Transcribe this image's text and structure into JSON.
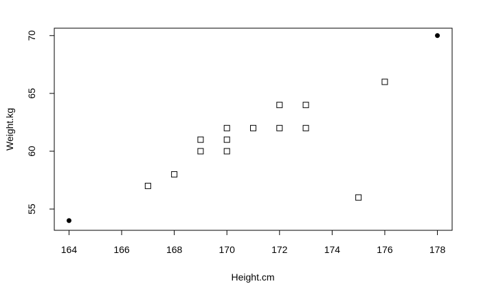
{
  "chart_data": {
    "type": "scatter",
    "xlabel": "Height.cm",
    "ylabel": "Weight.kg",
    "xlim": [
      163.44,
      178.56
    ],
    "ylim": [
      53.16,
      70.64
    ],
    "xticks": [
      164,
      166,
      168,
      170,
      172,
      174,
      176,
      178
    ],
    "yticks": [
      55,
      60,
      65,
      70
    ],
    "grid": false,
    "series": [
      {
        "marker": "open-square",
        "points": [
          {
            "x": 167,
            "y": 57
          },
          {
            "x": 168,
            "y": 58
          },
          {
            "x": 169,
            "y": 60
          },
          {
            "x": 169,
            "y": 61
          },
          {
            "x": 170,
            "y": 60
          },
          {
            "x": 170,
            "y": 61
          },
          {
            "x": 170,
            "y": 62
          },
          {
            "x": 171,
            "y": 62
          },
          {
            "x": 172,
            "y": 62
          },
          {
            "x": 172,
            "y": 64
          },
          {
            "x": 173,
            "y": 62
          },
          {
            "x": 173,
            "y": 64
          },
          {
            "x": 175,
            "y": 56
          },
          {
            "x": 176,
            "y": 66
          }
        ]
      },
      {
        "marker": "filled-circle",
        "points": [
          {
            "x": 164,
            "y": 54
          },
          {
            "x": 178,
            "y": 70
          }
        ]
      }
    ]
  }
}
